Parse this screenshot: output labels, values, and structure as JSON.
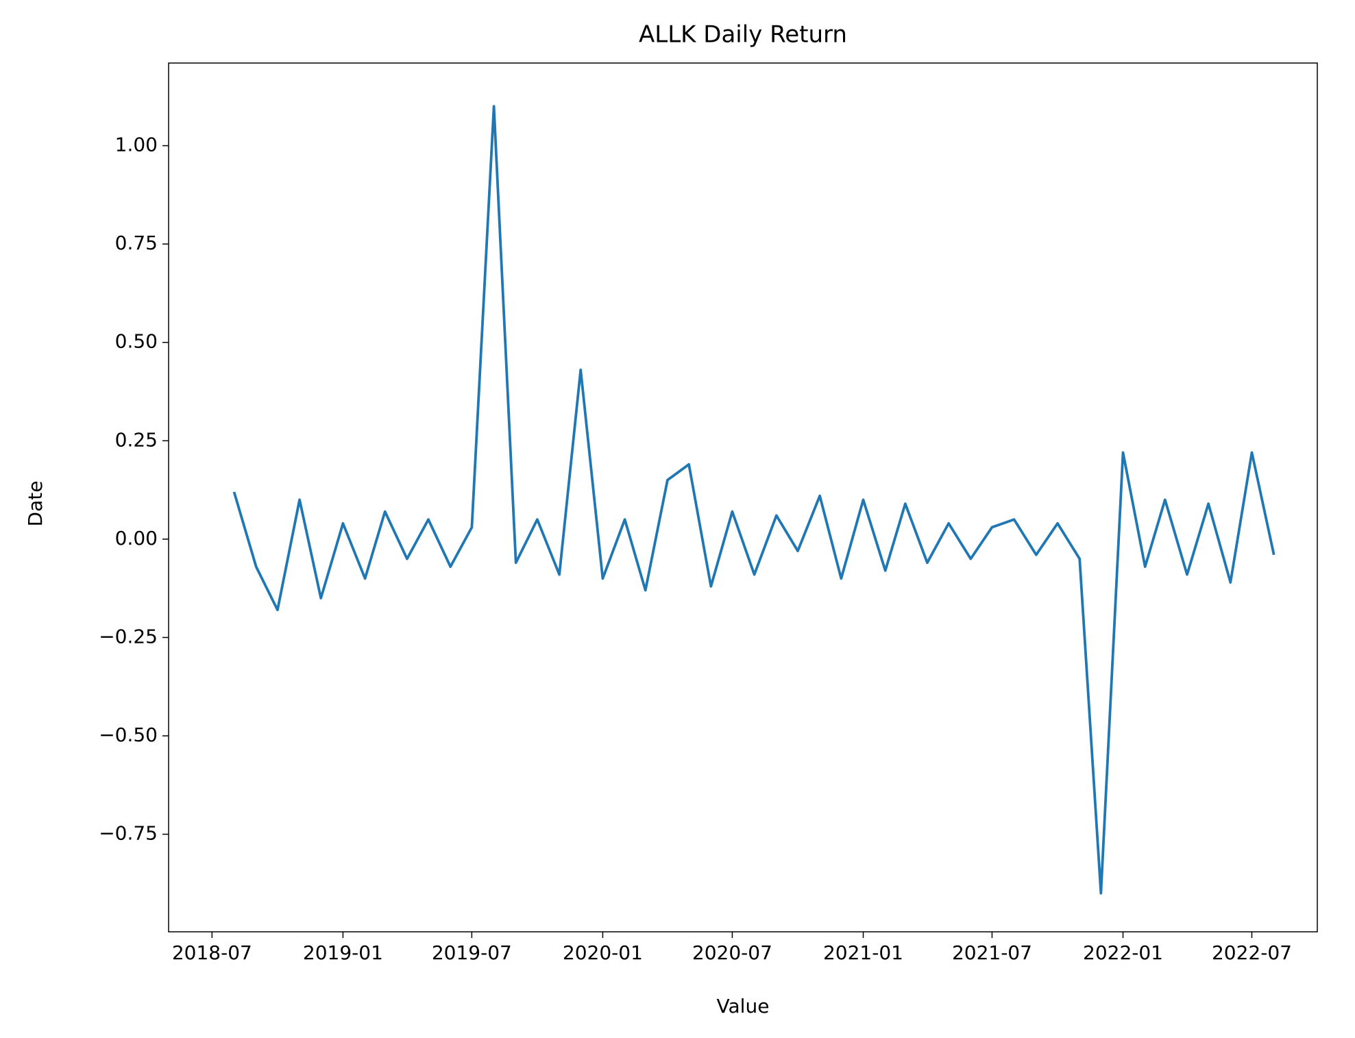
{
  "chart_data": {
    "type": "line",
    "title": "ALLK Daily Return",
    "x_label": "Value",
    "y_label": "Date",
    "color": "#1f77b4",
    "x": [
      "2018-08",
      "2018-09",
      "2018-10",
      "2018-11",
      "2018-12",
      "2019-01",
      "2019-02",
      "2019-03",
      "2019-04",
      "2019-05",
      "2019-06",
      "2019-07",
      "2019-08",
      "2019-09",
      "2019-10",
      "2019-11",
      "2019-12",
      "2020-01",
      "2020-02",
      "2020-03",
      "2020-04",
      "2020-05",
      "2020-06",
      "2020-07",
      "2020-08",
      "2020-09",
      "2020-10",
      "2020-11",
      "2020-12",
      "2021-01",
      "2021-02",
      "2021-03",
      "2021-04",
      "2021-05",
      "2021-06",
      "2021-07",
      "2021-08",
      "2021-09",
      "2021-10",
      "2021-11",
      "2021-12",
      "2022-01",
      "2022-02",
      "2022-03",
      "2022-04",
      "2022-05",
      "2022-06",
      "2022-07",
      "2022-08"
    ],
    "values": [
      0.12,
      -0.07,
      -0.18,
      0.1,
      -0.15,
      0.04,
      -0.1,
      0.07,
      -0.05,
      0.05,
      -0.07,
      0.03,
      1.1,
      -0.06,
      0.05,
      -0.09,
      0.43,
      -0.1,
      0.05,
      -0.13,
      0.15,
      0.19,
      -0.12,
      0.07,
      -0.09,
      0.06,
      -0.03,
      0.11,
      -0.1,
      0.1,
      -0.08,
      0.09,
      -0.06,
      0.04,
      -0.05,
      0.03,
      0.05,
      -0.04,
      0.04,
      -0.05,
      -0.9,
      0.22,
      -0.07,
      0.1,
      -0.09,
      0.09,
      -0.11,
      0.22,
      -0.04
    ],
    "xlim": [
      "2018-05",
      "2022-10"
    ],
    "xticks": [
      "2018-07",
      "2019-01",
      "2019-07",
      "2020-01",
      "2020-07",
      "2021-01",
      "2021-07",
      "2022-01",
      "2022-07"
    ],
    "ylim": [
      -0.998,
      1.21
    ],
    "yticks": [
      {
        "value": -0.75,
        "label": "−0.75"
      },
      {
        "value": -0.5,
        "label": "−0.50"
      },
      {
        "value": -0.25,
        "label": "−0.25"
      },
      {
        "value": 0,
        "label": "0.00"
      },
      {
        "value": 0.25,
        "label": "0.25"
      },
      {
        "value": 0.5,
        "label": "0.50"
      },
      {
        "value": 0.75,
        "label": "0.75"
      },
      {
        "value": 1,
        "label": "1.00"
      }
    ]
  }
}
